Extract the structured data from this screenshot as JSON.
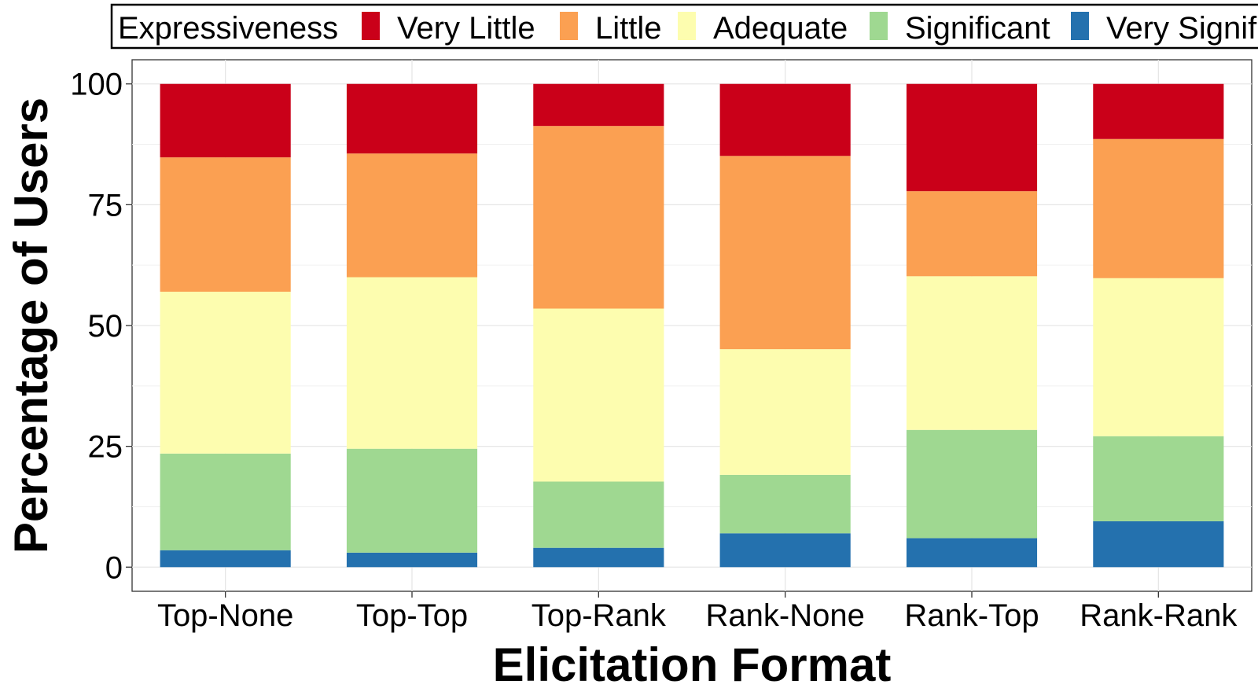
{
  "chart_data": {
    "type": "bar",
    "stacked": true,
    "xlabel": "Elicitation Format",
    "ylabel": "Percentage of Users",
    "ylim": [
      -5,
      105
    ],
    "yticks": [
      0,
      25,
      50,
      75,
      100
    ],
    "grid": true,
    "legend_position": "top",
    "legend_title": "Expressiveness",
    "categories": [
      "Top-None",
      "Top-Top",
      "Top-Rank",
      "Rank-None",
      "Rank-Top",
      "Rank-Rank"
    ],
    "series": [
      {
        "name": "Very Significant",
        "color": "#2471ae",
        "values": [
          3.5,
          3.0,
          4.0,
          7.0,
          6.0,
          9.5
        ]
      },
      {
        "name": "Significant",
        "color": "#9fd891",
        "values": [
          20.0,
          21.5,
          13.7,
          12.1,
          22.4,
          17.6
        ]
      },
      {
        "name": "Adequate",
        "color": "#fdfdaf",
        "values": [
          33.5,
          35.5,
          35.8,
          26.0,
          31.8,
          32.7
        ]
      },
      {
        "name": "Little",
        "color": "#fba052",
        "values": [
          27.8,
          25.6,
          37.8,
          40.0,
          17.6,
          28.8
        ]
      },
      {
        "name": "Very Little",
        "color": "#ca0019",
        "values": [
          15.2,
          14.4,
          8.7,
          14.9,
          22.2,
          11.4
        ]
      }
    ],
    "legend_order": [
      "Very Little",
      "Little",
      "Adequate",
      "Significant",
      "Very Significant"
    ]
  }
}
